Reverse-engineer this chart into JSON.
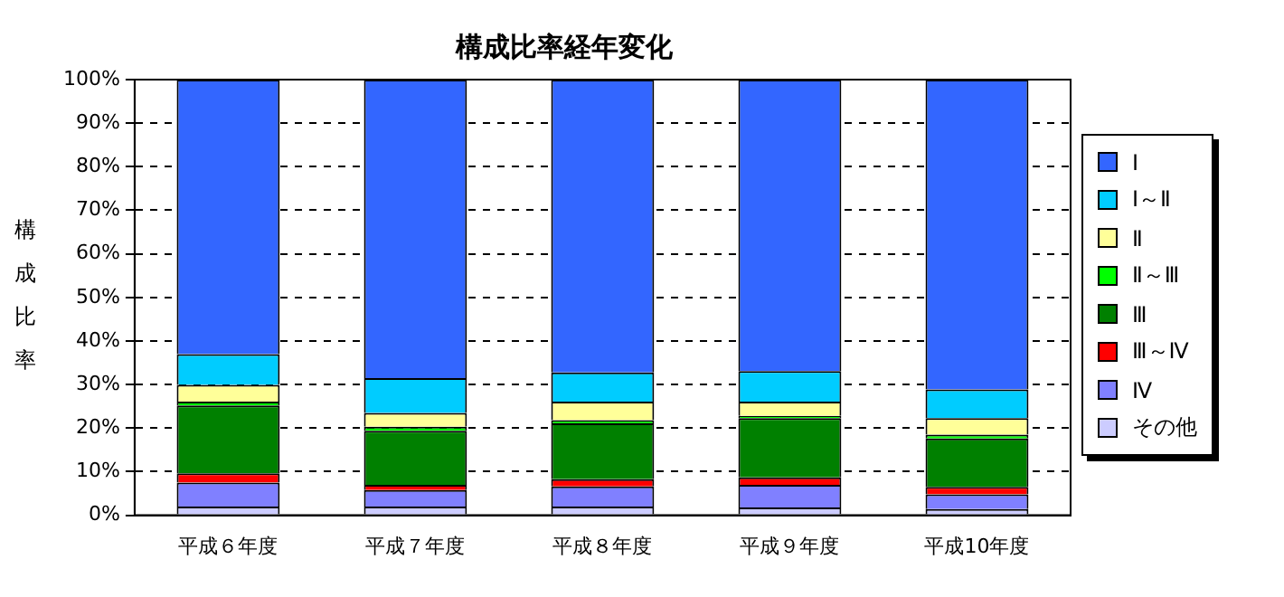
{
  "chart_data": {
    "type": "bar",
    "title": "構成比率経年変化",
    "ylabel": "構成比率",
    "stacked": true,
    "categories": [
      "平成６年度",
      "平成７年度",
      "平成８年度",
      "平成９年度",
      "平成10年度"
    ],
    "series": [
      {
        "name": "その他",
        "color": "#ccccff",
        "values": [
          2.0,
          2.0,
          2.0,
          1.8,
          1.4
        ]
      },
      {
        "name": "Ⅳ",
        "color": "#8080ff",
        "values": [
          5.5,
          3.8,
          4.6,
          5.2,
          3.4
        ]
      },
      {
        "name": "Ⅲ～Ⅳ",
        "color": "#ff0000",
        "values": [
          2.1,
          1.2,
          1.7,
          1.7,
          1.7
        ]
      },
      {
        "name": "Ⅲ",
        "color": "#008000",
        "values": [
          15.6,
          12.4,
          12.8,
          13.6,
          11.1
        ]
      },
      {
        "name": "Ⅱ～Ⅲ",
        "color": "#00ff00",
        "values": [
          0.9,
          0.9,
          0.7,
          0.5,
          0.9
        ]
      },
      {
        "name": "Ⅱ",
        "color": "#ffff99",
        "values": [
          3.8,
          3.2,
          4.3,
          3.3,
          3.8
        ]
      },
      {
        "name": "Ⅰ～Ⅱ",
        "color": "#00ccff",
        "values": [
          7.1,
          8.0,
          6.7,
          7.0,
          6.6
        ]
      },
      {
        "name": "Ⅰ",
        "color": "#3366ff",
        "values": [
          63.0,
          68.5,
          67.2,
          66.9,
          71.1
        ]
      }
    ],
    "ylim": [
      0,
      100
    ],
    "yticks": [
      {
        "value": 0,
        "label": "0%"
      },
      {
        "value": 10,
        "label": "10%"
      },
      {
        "value": 20,
        "label": "20%"
      },
      {
        "value": 30,
        "label": "30%"
      },
      {
        "value": 40,
        "label": "40%"
      },
      {
        "value": 50,
        "label": "50%"
      },
      {
        "value": 60,
        "label": "60%"
      },
      {
        "value": 70,
        "label": "70%"
      },
      {
        "value": 80,
        "label": "80%"
      },
      {
        "value": 90,
        "label": "90%"
      },
      {
        "value": 100,
        "label": "100%"
      }
    ],
    "grid": "y",
    "legend": "right"
  }
}
